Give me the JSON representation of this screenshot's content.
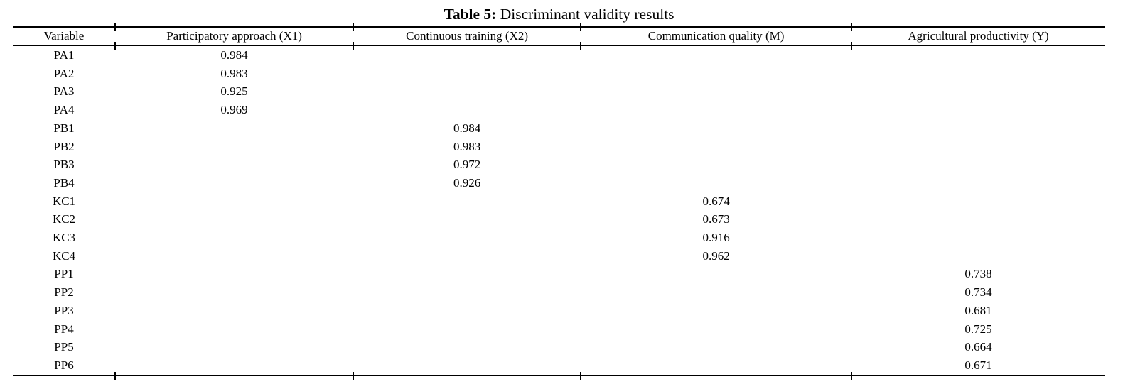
{
  "title": {
    "label": "Table 5:",
    "text": "Discriminant validity results"
  },
  "table": {
    "columns": [
      "Variable",
      "Participatory approach (X1)",
      "Continuous training (X2)",
      "Communication quality (M)",
      "Agricultural productivity (Y)"
    ],
    "rows": [
      [
        "PA1",
        "0.984",
        "",
        "",
        ""
      ],
      [
        "PA2",
        "0.983",
        "",
        "",
        ""
      ],
      [
        "PA3",
        "0.925",
        "",
        "",
        ""
      ],
      [
        "PA4",
        "0.969",
        "",
        "",
        ""
      ],
      [
        "PB1",
        "",
        "0.984",
        "",
        ""
      ],
      [
        "PB2",
        "",
        "0.983",
        "",
        ""
      ],
      [
        "PB3",
        "",
        "0.972",
        "",
        ""
      ],
      [
        "PB4",
        "",
        "0.926",
        "",
        ""
      ],
      [
        "KC1",
        "",
        "",
        "0.674",
        ""
      ],
      [
        "KC2",
        "",
        "",
        "0.673",
        ""
      ],
      [
        "KC3",
        "",
        "",
        "0.916",
        ""
      ],
      [
        "KC4",
        "",
        "",
        "0.962",
        ""
      ],
      [
        "PP1",
        "",
        "",
        "",
        "0.738"
      ],
      [
        "PP2",
        "",
        "",
        "",
        "0.734"
      ],
      [
        "PP3",
        "",
        "",
        "",
        "0.681"
      ],
      [
        "PP4",
        "",
        "",
        "",
        "0.725"
      ],
      [
        "PP5",
        "",
        "",
        "",
        "0.664"
      ],
      [
        "PP6",
        "",
        "",
        "",
        "0.671"
      ]
    ]
  },
  "colors": {
    "background": "#ffffff",
    "text": "#000000",
    "rule": "#000000"
  }
}
